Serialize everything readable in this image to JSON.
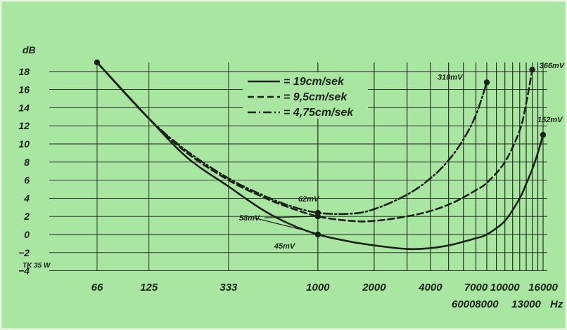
{
  "chart_data": {
    "type": "line",
    "y_unit": "dB",
    "x_unit": "Hz",
    "x_scale": "log",
    "ylim": [
      -4,
      19
    ],
    "xlim": [
      50,
      17000
    ],
    "grid": true,
    "legend_placement": "top-center",
    "y_ticks": [
      -4,
      -2,
      0,
      2,
      4,
      6,
      8,
      10,
      12,
      14,
      16,
      18
    ],
    "x_tick_labels_top": [
      "66",
      "125",
      "333",
      "1000",
      "2000",
      "4000",
      "7000",
      "10000",
      "16000"
    ],
    "x_tick_labels_bottom": [
      "6000",
      "8000",
      "13000"
    ],
    "model_label": "TK 35 W",
    "colors": {
      "background": "#a8e6a1",
      "ink": "#1a2218",
      "frame": "#e8f5de"
    },
    "series": [
      {
        "name": "= 19cm/sek",
        "style": "solid",
        "points": [
          [
            66,
            19.0
          ],
          [
            125,
            12.8
          ],
          [
            200,
            8.5
          ],
          [
            333,
            5.3
          ],
          [
            500,
            2.8
          ],
          [
            700,
            1.2
          ],
          [
            1000,
            0.0
          ],
          [
            1500,
            -0.8
          ],
          [
            2000,
            -1.2
          ],
          [
            3000,
            -1.6
          ],
          [
            4000,
            -1.5
          ],
          [
            5000,
            -1.2
          ],
          [
            6000,
            -0.8
          ],
          [
            7000,
            -0.4
          ],
          [
            8000,
            0.0
          ],
          [
            10000,
            1.5
          ],
          [
            12000,
            4.0
          ],
          [
            13000,
            5.6
          ],
          [
            14000,
            7.2
          ],
          [
            15000,
            9.0
          ],
          [
            16000,
            11.0
          ]
        ]
      },
      {
        "name": "= 9,5cm/sek",
        "style": "dashed",
        "points": [
          [
            66,
            19.0
          ],
          [
            125,
            12.8
          ],
          [
            200,
            9.0
          ],
          [
            333,
            6.0
          ],
          [
            500,
            4.2
          ],
          [
            700,
            3.0
          ],
          [
            1000,
            2.0
          ],
          [
            1500,
            1.5
          ],
          [
            2000,
            1.5
          ],
          [
            3000,
            2.0
          ],
          [
            4000,
            2.6
          ],
          [
            5000,
            3.3
          ],
          [
            6000,
            4.1
          ],
          [
            7000,
            4.9
          ],
          [
            8000,
            5.7
          ],
          [
            10000,
            8.0
          ],
          [
            12000,
            11.5
          ],
          [
            13000,
            14.5
          ],
          [
            14000,
            18.2
          ]
        ]
      },
      {
        "name": "= 4,75cm/sek",
        "style": "dashdot",
        "points": [
          [
            66,
            19.0
          ],
          [
            125,
            12.8
          ],
          [
            200,
            9.2
          ],
          [
            333,
            6.2
          ],
          [
            500,
            4.4
          ],
          [
            700,
            3.2
          ],
          [
            1000,
            2.4
          ],
          [
            1500,
            2.3
          ],
          [
            2000,
            2.8
          ],
          [
            3000,
            4.4
          ],
          [
            4000,
            6.2
          ],
          [
            5000,
            8.2
          ],
          [
            6000,
            10.5
          ],
          [
            7000,
            13.2
          ],
          [
            8000,
            16.8
          ]
        ]
      }
    ],
    "annotations": [
      {
        "text": "310mV",
        "x": 8000,
        "y": 16.8
      },
      {
        "text": "366mV",
        "x": 14000,
        "y": 18.2
      },
      {
        "text": "152mV",
        "x": 16000,
        "y": 11.0
      },
      {
        "text": "62mV",
        "x": 1000,
        "y": 2.4
      },
      {
        "text": "58mV",
        "x": 1000,
        "y": 2.0
      },
      {
        "text": "45mV",
        "x": 1000,
        "y": 0.0
      }
    ]
  }
}
